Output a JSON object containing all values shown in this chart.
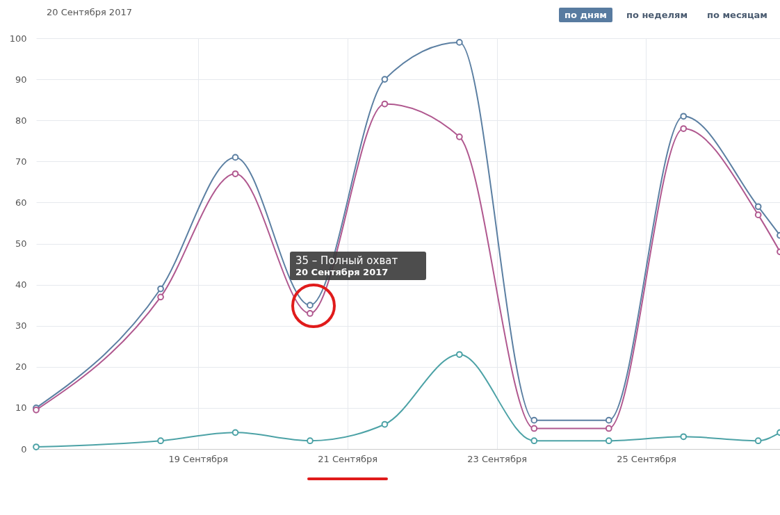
{
  "chart_data": {
    "type": "line",
    "title": "20 Сентября 2017",
    "x": [
      "2017-09-16T08:00",
      "2017-09-18",
      "2017-09-19",
      "2017-09-20",
      "2017-09-21",
      "2017-09-22",
      "2017-09-23",
      "2017-09-24",
      "2017-09-25",
      "2017-09-26",
      "2017-09-26T07:00"
    ],
    "series": [
      {
        "color": "#5b7fa2",
        "values": [
          10,
          39,
          71,
          35,
          90,
          99,
          7,
          7,
          81,
          59,
          52
        ]
      },
      {
        "color": "#b0588f",
        "values": [
          9.5,
          37,
          67,
          33,
          84,
          76,
          5,
          5,
          78,
          57,
          48
        ]
      },
      {
        "color": "#4ca2a6",
        "values": [
          0.5,
          2,
          4,
          2,
          6,
          23,
          2,
          2,
          3,
          2,
          4
        ]
      }
    ],
    "xlim": [
      "2017-09-16T08:00",
      "2017-09-26T07:00"
    ],
    "xticks": [
      {
        "value": "2017-09-18T12:00",
        "label": "19 Сентября"
      },
      {
        "value": "2017-09-20T12:00",
        "label": "21 Сентября"
      },
      {
        "value": "2017-09-22T12:00",
        "label": "23 Сентября"
      },
      {
        "value": "2017-09-24T12:00",
        "label": "25 Сентября"
      }
    ],
    "ylim": [
      0,
      100
    ],
    "yticks": [
      0,
      10,
      20,
      30,
      40,
      50,
      60,
      70,
      80,
      90,
      100
    ],
    "grid": true,
    "marker": "circle",
    "line_style": "solid",
    "annotations": [
      "35 – Полный охват",
      "20 Сентября 2017",
      "по дням",
      "по неделям",
      "по месяцам"
    ]
  }
}
